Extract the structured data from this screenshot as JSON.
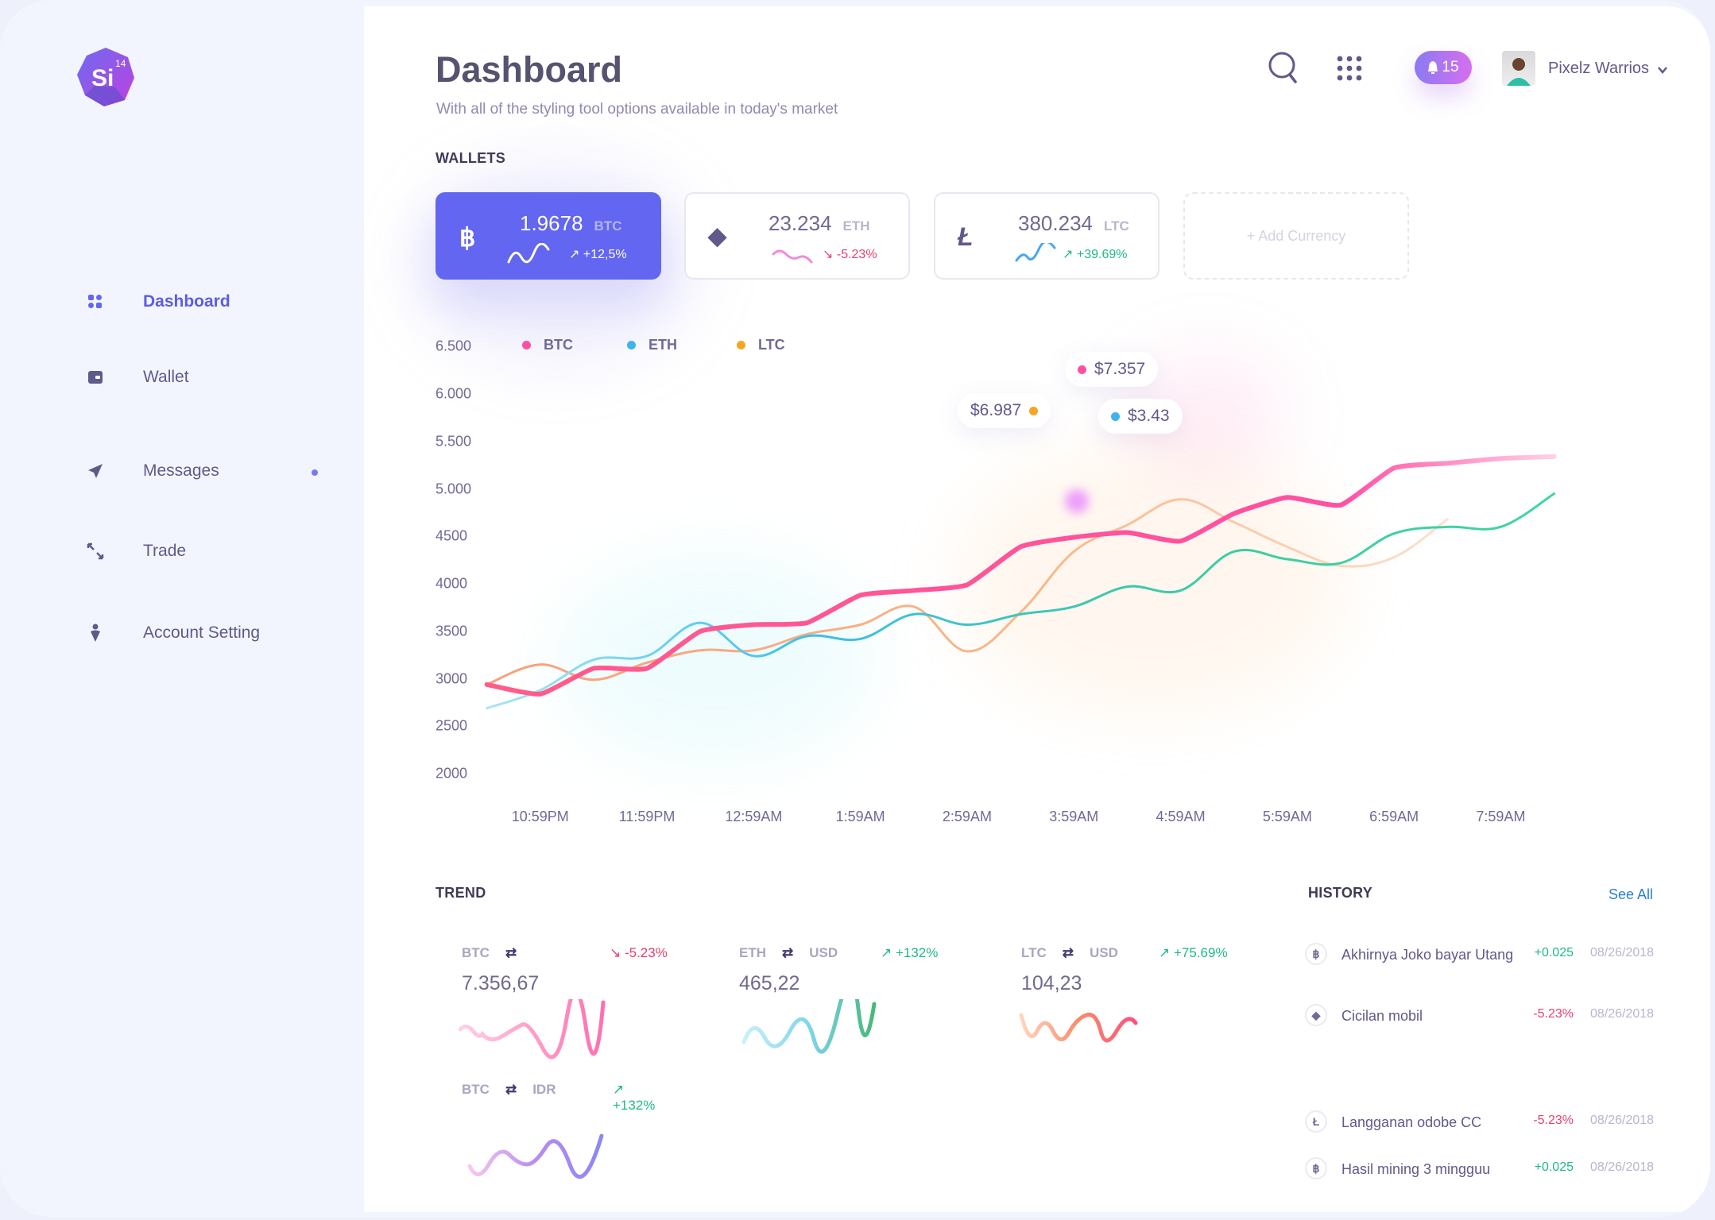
{
  "brand": {
    "logo_text": "Si",
    "logo_superscript": "14"
  },
  "sidebar": {
    "items": [
      {
        "label": "Dashboard",
        "icon": "dashboard-icon",
        "active": true
      },
      {
        "label": "Wallet",
        "icon": "wallet-icon"
      },
      {
        "label": "Messages",
        "icon": "paper-plane-icon",
        "unread_dot": true
      },
      {
        "label": "Trade",
        "icon": "arrows-exchange-icon"
      },
      {
        "label": "Account Setting",
        "icon": "user-pin-icon"
      }
    ]
  },
  "header": {
    "title": "Dashboard",
    "subtitle": "With all of the styling tool options available in today's market",
    "notifications": "15",
    "user_name": "Pixelz Warrios"
  },
  "wallets": {
    "label": "WALLETS",
    "cards": [
      {
        "symbol": "฿",
        "amount": "1.9678",
        "currency": "BTC",
        "change": "+12,5%",
        "trend": "up",
        "active": true
      },
      {
        "symbol": "◆",
        "amount": "23.234",
        "currency": "ETH",
        "change": "-5.23%",
        "trend": "down"
      },
      {
        "symbol": "Ł",
        "amount": "380.234",
        "currency": "LTC",
        "change": "+39.69%",
        "trend": "up"
      }
    ],
    "add_label": "+ Add Currency"
  },
  "chart_data": {
    "type": "line",
    "x": [
      "10:29PM",
      "10:59PM",
      "11:29PM",
      "11:59PM",
      "12:29AM",
      "12:59AM",
      "1:29AM",
      "1:59AM",
      "2:29AM",
      "2:59AM",
      "3:29AM",
      "3:59AM",
      "4:29AM",
      "4:59AM",
      "5:29AM",
      "5:59AM",
      "6:29AM",
      "6:59AM",
      "7:29AM",
      "7:59AM",
      "8:29AM"
    ],
    "x_tick_labels": [
      "10:59PM",
      "11:59PM",
      "12:59AM",
      "1:59AM",
      "2:59AM",
      "3:59AM",
      "4:59AM",
      "5:59AM",
      "6:59AM",
      "7:59AM"
    ],
    "y_tick_labels": [
      "6.500",
      "6.000",
      "5.500",
      "5.000",
      "4500",
      "4000",
      "3500",
      "3000",
      "2500",
      "2000"
    ],
    "y_tick_values": [
      6500,
      6000,
      5500,
      5000,
      4500,
      4000,
      3500,
      3000,
      2500,
      2000
    ],
    "ylim": [
      2000,
      6500
    ],
    "grid": false,
    "legend_position": "top-left",
    "series": [
      {
        "name": "BTC",
        "color": "#ff4fa3",
        "values": [
          2940,
          2840,
          3110,
          3110,
          3500,
          3570,
          3590,
          3880,
          3930,
          3990,
          4390,
          4490,
          4540,
          4450,
          4740,
          4910,
          4830,
          5220,
          5270,
          5320,
          5340
        ]
      },
      {
        "name": "ETH",
        "color": "#3fbfe8",
        "values": [
          2690,
          2880,
          3200,
          3240,
          3590,
          3240,
          3450,
          3420,
          3680,
          3570,
          3680,
          3760,
          3970,
          3930,
          4340,
          4260,
          4220,
          4530,
          4600,
          4600,
          4950
        ]
      },
      {
        "name": "LTC",
        "color": "#f9a36b",
        "values": [
          2940,
          3150,
          2990,
          3170,
          3300,
          3300,
          3470,
          3570,
          3760,
          3290,
          3700,
          4340,
          4620,
          4890,
          4650,
          4390,
          4190,
          4280,
          4680,
          null,
          null
        ]
      }
    ],
    "annotations": [
      {
        "series": "BTC",
        "label": "$7.357",
        "color": "#ff4fa3"
      },
      {
        "series": "LTC",
        "label": "$6.987",
        "color": "#f5a623"
      },
      {
        "series": "ETH",
        "label": "$3.43",
        "color": "#3fb3ec"
      }
    ]
  },
  "trend": {
    "label": "TREND",
    "items": [
      {
        "base": "BTC",
        "quote": "",
        "change": "-5.23%",
        "trend": "down",
        "value": "7.356,67"
      },
      {
        "base": "ETH",
        "quote": "USD",
        "change": "+132%",
        "trend": "up",
        "value": "465,22"
      },
      {
        "base": "LTC",
        "quote": "USD",
        "change": "+75.69%",
        "trend": "up",
        "value": "104,23"
      },
      {
        "base": "BTC",
        "quote": "IDR",
        "change": "+132%",
        "trend": "up",
        "value": ""
      }
    ]
  },
  "history": {
    "label": "HISTORY",
    "see_all": "See All",
    "rows": [
      {
        "icon": "฿",
        "title": "Akhirnya Joko bayar Utang",
        "amount": "+0.025",
        "trend": "up",
        "date": "08/26/2018"
      },
      {
        "icon": "◆",
        "title": "Cicilan mobil",
        "amount": "-5.23%",
        "trend": "down",
        "date": "08/26/2018"
      },
      {
        "icon": "Ł",
        "title": "Langganan odobe CC",
        "amount": "-5.23%",
        "trend": "down",
        "date": "08/26/2018"
      },
      {
        "icon": "฿",
        "title": "Hasil mining 3 mingguu",
        "amount": "+0.025",
        "trend": "up",
        "date": "08/26/2018"
      }
    ]
  }
}
